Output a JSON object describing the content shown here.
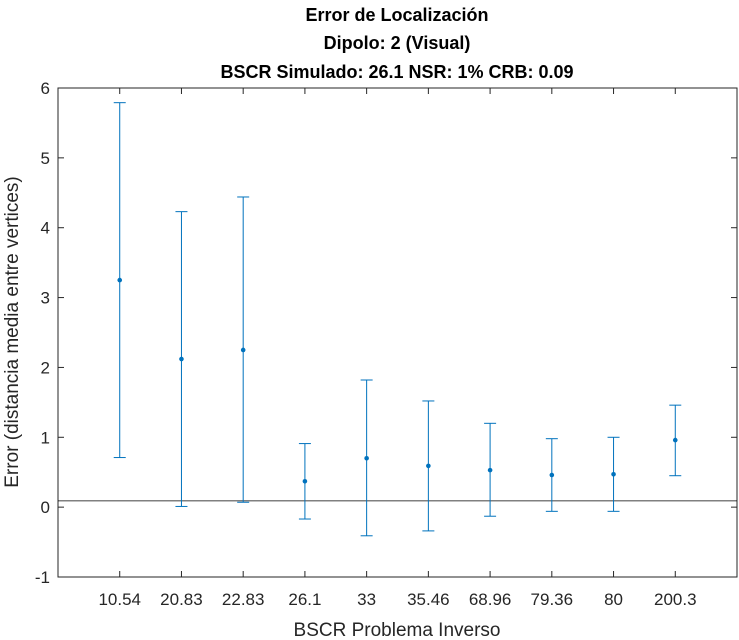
{
  "chart_data": {
    "type": "errorbar",
    "title": [
      "Error de Localización",
      "Dipolo: 2 (Visual)",
      "BSCR Simulado: 26.1 NSR: 1% CRB: 0.09"
    ],
    "xlabel": "BSCR Problema Inverso",
    "ylabel": "Error (distancia media entre vertices)",
    "categories": [
      "10.54",
      "20.83",
      "22.83",
      "26.1",
      "33",
      "35.46",
      "68.96",
      "79.36",
      "80",
      "200.3"
    ],
    "series": [
      {
        "mean": [
          3.25,
          2.12,
          2.25,
          0.37,
          0.7,
          0.59,
          0.53,
          0.46,
          0.47,
          0.96
        ],
        "lower": [
          0.71,
          0.01,
          0.07,
          -0.17,
          -0.41,
          -0.34,
          -0.13,
          -0.06,
          -0.06,
          0.45
        ],
        "upper": [
          5.79,
          4.23,
          4.44,
          0.91,
          1.82,
          1.52,
          1.2,
          0.98,
          1.0,
          1.46
        ]
      }
    ],
    "reference_line": 0.09,
    "ylim": [
      -1,
      6
    ],
    "yticks": [
      -1,
      0,
      1,
      2,
      3,
      4,
      5,
      6
    ],
    "grid": false,
    "colors": {
      "series": "#0072BD",
      "reference": "#000000",
      "axis": "#262626"
    }
  }
}
